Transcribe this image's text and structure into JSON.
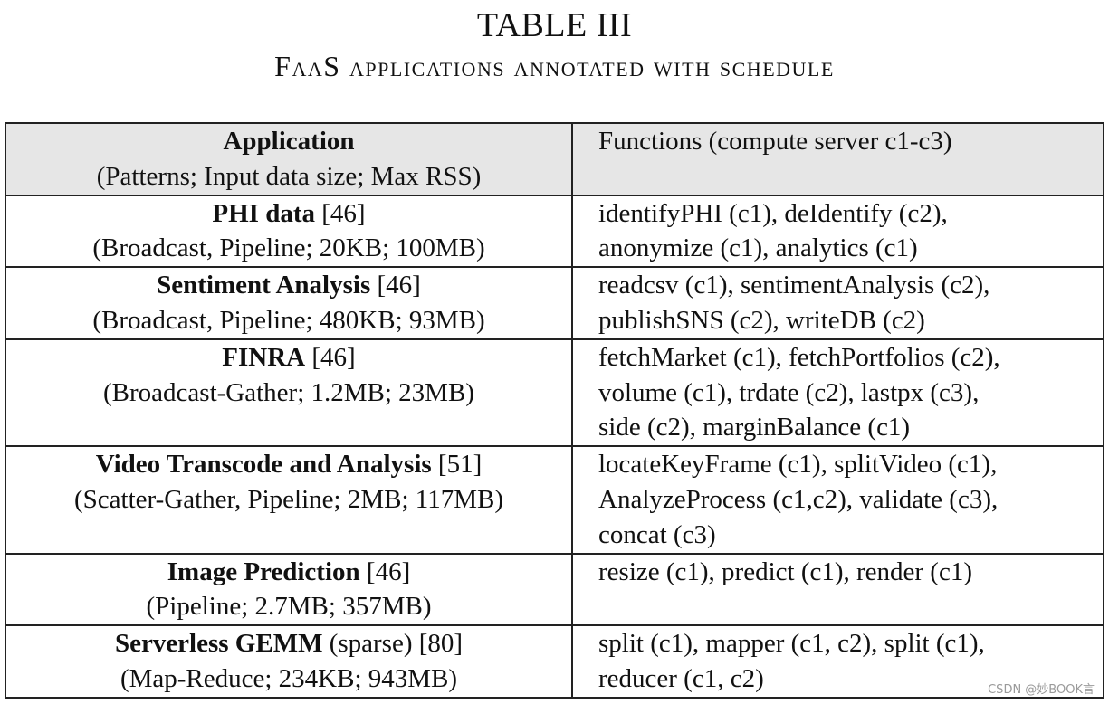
{
  "caption": {
    "number": "TABLE III",
    "title": "FaaS applications annotated with schedule"
  },
  "header": {
    "app_title": "Application",
    "app_subtitle": "(Patterns; Input data size; Max RSS)",
    "functions": "Functions (compute server c1-c3)"
  },
  "rows": [
    {
      "name": "PHI data",
      "suffix": " [46]",
      "details": "(Broadcast, Pipeline; 20KB; 100MB)",
      "functions": [
        "identifyPHI (c1), deIdentify (c2),",
        "anonymize (c1), analytics (c1)"
      ]
    },
    {
      "name": "Sentiment Analysis",
      "suffix": " [46]",
      "details": "(Broadcast, Pipeline; 480KB; 93MB)",
      "functions": [
        "readcsv (c1), sentimentAnalysis (c2),",
        "publishSNS (c2), writeDB (c2)"
      ]
    },
    {
      "name": "FINRA",
      "suffix": " [46]",
      "details": "(Broadcast-Gather; 1.2MB; 23MB)",
      "functions": [
        "fetchMarket (c1), fetchPortfolios (c2),",
        "volume (c1), trdate (c2), lastpx (c3),",
        "side (c2), marginBalance (c1)"
      ]
    },
    {
      "name": "Video Transcode and Analysis",
      "suffix": " [51]",
      "details": "(Scatter-Gather, Pipeline; 2MB; 117MB)",
      "functions": [
        "locateKeyFrame (c1), splitVideo (c1),",
        "AnalyzeProcess (c1,c2), validate (c3),",
        "concat (c3)"
      ]
    },
    {
      "name": "Image Prediction",
      "suffix": " [46]",
      "details": "(Pipeline; 2.7MB; 357MB)",
      "functions": [
        "resize (c1), predict (c1), render (c1)"
      ]
    },
    {
      "name": "Serverless GEMM",
      "suffix": " (sparse) [80]",
      "details": "(Map-Reduce; 234KB; 943MB)",
      "functions": [
        "split (c1), mapper (c1, c2), split (c1),",
        "reducer (c1, c2)"
      ]
    }
  ],
  "watermark": "CSDN @妙BOOK言"
}
